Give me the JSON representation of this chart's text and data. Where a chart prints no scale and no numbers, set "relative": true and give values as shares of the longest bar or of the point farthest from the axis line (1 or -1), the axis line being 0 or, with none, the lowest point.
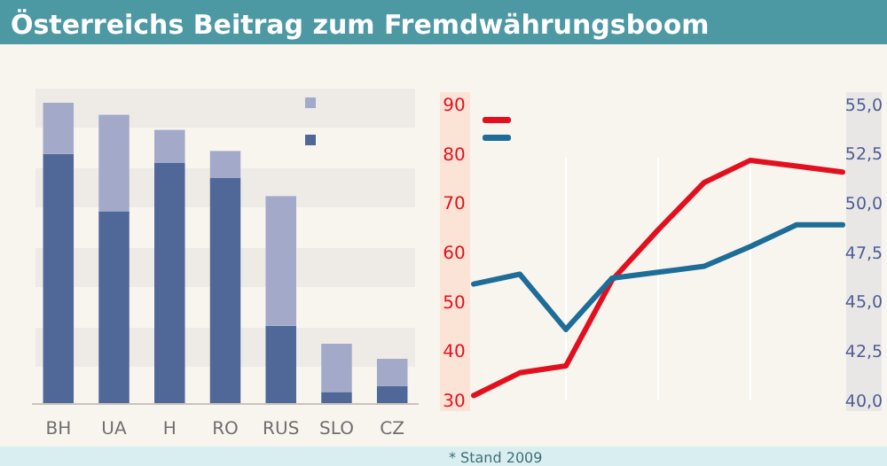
{
  "chart_data": [
    {
      "type": "bar",
      "title": "Österreichs Beitrag zum Fremdwährungsboom",
      "relative": true,
      "stacked": true,
      "categories": [
        "BH",
        "UA",
        "H",
        "RO",
        "RUS",
        "SLO",
        "CZ"
      ],
      "series": [
        {
          "color": "#4f6898",
          "values": [
            0.83,
            0.64,
            0.8,
            0.75,
            0.26,
            0.04,
            0.06
          ]
        },
        {
          "color": "#a2a9c9",
          "values": [
            0.17,
            0.32,
            0.11,
            0.09,
            0.43,
            0.16,
            0.09
          ]
        }
      ]
    },
    {
      "type": "line",
      "categories": [
        null,
        null,
        null,
        null,
        null,
        null,
        null,
        null,
        null
      ],
      "ylim": [
        30,
        90
      ],
      "yticks": [
        30,
        40,
        50,
        60,
        70,
        80,
        90
      ],
      "y2lim": [
        40,
        55
      ],
      "y2ticks": [
        {
          "value": 40,
          "label": "40,0"
        },
        {
          "value": 42.5,
          "label": "42,5"
        },
        {
          "value": 45,
          "label": "45,0"
        },
        {
          "value": 47.5,
          "label": "47,5"
        },
        {
          "value": 50,
          "label": "50,0"
        },
        {
          "value": 52.5,
          "label": "52,5"
        },
        {
          "value": 55,
          "label": "55,0"
        }
      ],
      "annotations": [
        "* Stand 2009"
      ],
      "grid": "x",
      "series": [
        {
          "color": "#e2101e",
          "values": [
            31,
            35.6,
            37,
            54.4,
            64.6,
            74.2,
            78.7,
            77.5,
            76.3
          ]
        },
        {
          "color": "#1d6d98",
          "axis": "y2",
          "values": [
            45.9,
            46.4,
            43.6,
            46.2,
            46.5,
            46.8,
            47.8,
            48.9,
            48.9
          ]
        }
      ]
    }
  ]
}
